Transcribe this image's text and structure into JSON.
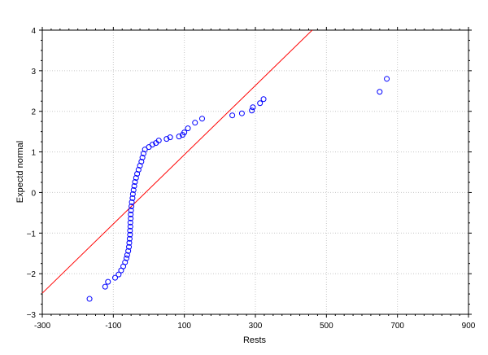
{
  "chart_data": {
    "type": "scatter",
    "title": "",
    "xlabel": "Rests",
    "ylabel": "Expectd normal",
    "xlim": [
      -300,
      900
    ],
    "ylim": [
      -3,
      4
    ],
    "x_ticks": [
      -300,
      -100,
      100,
      300,
      500,
      700,
      900
    ],
    "x_tick_labels": [
      "-300",
      "-100",
      "100",
      "300",
      "500",
      "700",
      "900"
    ],
    "y_ticks": [
      -3,
      -2,
      -1,
      0,
      1,
      2,
      3,
      4
    ],
    "y_tick_labels": [
      "−3",
      "−2",
      "−1",
      "0",
      "1",
      "2",
      "3",
      "4"
    ],
    "grid": true,
    "point_color": "#0000ff",
    "line_color": "#ff0000",
    "reference_line": {
      "x": [
        -300,
        460
      ],
      "y": [
        -2.48,
        4.0
      ]
    },
    "series": [
      {
        "points": [
          {
            "x": -167,
            "y": -2.62
          },
          {
            "x": -123,
            "y": -2.32
          },
          {
            "x": -115,
            "y": -2.2
          },
          {
            "x": -95,
            "y": -2.1
          },
          {
            "x": -85,
            "y": -2.02
          },
          {
            "x": -78,
            "y": -1.92
          },
          {
            "x": -72,
            "y": -1.82
          },
          {
            "x": -67,
            "y": -1.72
          },
          {
            "x": -63,
            "y": -1.62
          },
          {
            "x": -61,
            "y": -1.54
          },
          {
            "x": -58,
            "y": -1.44
          },
          {
            "x": -56,
            "y": -1.34
          },
          {
            "x": -55,
            "y": -1.24
          },
          {
            "x": -54,
            "y": -1.14
          },
          {
            "x": -53,
            "y": -1.04
          },
          {
            "x": -53,
            "y": -0.94
          },
          {
            "x": -52,
            "y": -0.84
          },
          {
            "x": -52,
            "y": -0.74
          },
          {
            "x": -51,
            "y": -0.64
          },
          {
            "x": -51,
            "y": -0.54
          },
          {
            "x": -50,
            "y": -0.44
          },
          {
            "x": -49,
            "y": -0.34
          },
          {
            "x": -48,
            "y": -0.24
          },
          {
            "x": -46,
            "y": -0.14
          },
          {
            "x": -45,
            "y": -0.04
          },
          {
            "x": -43,
            "y": 0.06
          },
          {
            "x": -41,
            "y": 0.16
          },
          {
            "x": -39,
            "y": 0.26
          },
          {
            "x": -36,
            "y": 0.36
          },
          {
            "x": -33,
            "y": 0.46
          },
          {
            "x": -29,
            "y": 0.56
          },
          {
            "x": -25,
            "y": 0.66
          },
          {
            "x": -21,
            "y": 0.76
          },
          {
            "x": -18,
            "y": 0.86
          },
          {
            "x": -15,
            "y": 0.96
          },
          {
            "x": -11,
            "y": 1.06
          },
          {
            "x": 0,
            "y": 1.12
          },
          {
            "x": 10,
            "y": 1.18
          },
          {
            "x": 20,
            "y": 1.22
          },
          {
            "x": 28,
            "y": 1.28
          },
          {
            "x": 50,
            "y": 1.32
          },
          {
            "x": 60,
            "y": 1.36
          },
          {
            "x": 85,
            "y": 1.38
          },
          {
            "x": 95,
            "y": 1.42
          },
          {
            "x": 100,
            "y": 1.48
          },
          {
            "x": 110,
            "y": 1.58
          },
          {
            "x": 130,
            "y": 1.72
          },
          {
            "x": 150,
            "y": 1.82
          },
          {
            "x": 235,
            "y": 1.9
          },
          {
            "x": 262,
            "y": 1.95
          },
          {
            "x": 290,
            "y": 2.02
          },
          {
            "x": 293,
            "y": 2.1
          },
          {
            "x": 313,
            "y": 2.2
          },
          {
            "x": 323,
            "y": 2.3
          },
          {
            "x": 650,
            "y": 2.48
          },
          {
            "x": 670,
            "y": 2.8
          }
        ]
      }
    ]
  }
}
